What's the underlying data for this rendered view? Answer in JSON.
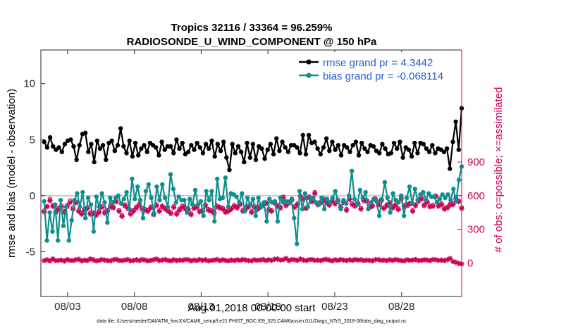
{
  "chart_data": {
    "type": "line",
    "title": [
      "Tropics 32116 / 33364 = 96.259%",
      "RADIOSONDE_U_WIND_COMPONENT @ 150 hPa"
    ],
    "xlabel": "Aug.01,2018 00:00:00 start",
    "ylabel_left": "rmse and bias (model - observation)",
    "ylabel_right": "# of obs: o=possible; ×=assimilated",
    "footer": "data file: /Users/raeder/DAI/ATM_forcXX/CAM6_setup/f.e21.FHIST_BGC.f09_025.CAM6assim.011/Diags_NTrS_2018-08/obs_diag_output.nc",
    "x_range_days": [
      0,
      31.5
    ],
    "x_tick_days": [
      2,
      7,
      12,
      17,
      22,
      27
    ],
    "x_tick_labels": [
      "08/03",
      "08/08",
      "08/13",
      "08/18",
      "08/23",
      "08/28"
    ],
    "ylim_left": [
      -9,
      13
    ],
    "yticks_left": [
      -5,
      0,
      5,
      10
    ],
    "ylim_right": [
      -300,
      1900
    ],
    "yticks_right": [
      0,
      300,
      600,
      900
    ],
    "colors": {
      "rmse": "#000000",
      "bias": "#0e8e8e",
      "obs": "#cc0055",
      "zero_line": "#c8c8c8",
      "legend_text": "#1f5fd6"
    },
    "legend": [
      {
        "label": "rmse grand pr = 4.3442",
        "series": "rmse"
      },
      {
        "label": "bias grand pr = -0.068114",
        "series": "bias"
      }
    ],
    "series": [
      {
        "name": "rmse",
        "axis": "left",
        "values": [
          4.8,
          4.3,
          5.2,
          4.4,
          4.1,
          4.3,
          3.9,
          4.6,
          4.9,
          5.0,
          4.4,
          3.2,
          4.5,
          5.5,
          5.6,
          3.9,
          4.6,
          3.0,
          4.9,
          4.2,
          4.5,
          3.2,
          4.7,
          4.9,
          4.0,
          4.5,
          6.0,
          4.4,
          3.8,
          4.9,
          3.5,
          4.7,
          3.6,
          4.2,
          4.5,
          3.9,
          4.7,
          4.5,
          4.3,
          3.6,
          4.8,
          4.1,
          4.4,
          4.4,
          3.8,
          5.0,
          4.2,
          4.7,
          3.7,
          3.9,
          4.5,
          4.1,
          4.7,
          4.3,
          3.8,
          4.6,
          4.2,
          4.9,
          3.5,
          4.6,
          4.0,
          4.8,
          3.4,
          2.3,
          4.6,
          3.8,
          4.4,
          3.9,
          3.0,
          4.7,
          3.4,
          4.6,
          3.2,
          4.4,
          4.2,
          3.3,
          4.1,
          4.6,
          3.7,
          5.1,
          4.0,
          4.8,
          4.3,
          3.9,
          4.5,
          4.5,
          4.3,
          3.8,
          5.4,
          3.7,
          5.4,
          4.7,
          4.8,
          4.2,
          3.7,
          4.3,
          5.1,
          4.0,
          4.8,
          4.1,
          4.5,
          3.6,
          4.5,
          4.3,
          3.9,
          4.5,
          4.8,
          3.6,
          4.7,
          4.2,
          3.9,
          4.5,
          4.4,
          4.0,
          3.8,
          4.6,
          4.2,
          3.7,
          3.8,
          4.7,
          4.2,
          4.8,
          3.4,
          4.3,
          4.1,
          3.5,
          4.7,
          3.8,
          4.7,
          4.6,
          4.2,
          3.9,
          4.5,
          3.8,
          4.2,
          4.1,
          3.9,
          4.2,
          2.4,
          4.8,
          6.6,
          4.1,
          7.8
        ]
      },
      {
        "name": "bias",
        "axis": "left",
        "values": [
          -0.5,
          -4.0,
          -1.5,
          -3.2,
          -0.8,
          -4.0,
          -0.4,
          -2.7,
          -1.0,
          -4.0,
          -2.2,
          -0.4,
          0.2,
          -1.0,
          0.3,
          -2.0,
          -0.2,
          -0.8,
          -3.2,
          -0.1,
          -1.0,
          0.2,
          -0.6,
          -2.4,
          -0.2,
          -0.6,
          -0.2,
          0.0,
          -0.7,
          -0.3,
          0.3,
          -1.2,
          1.5,
          -0.3,
          0.8,
          -0.4,
          -2.0,
          0.4,
          1.0,
          -0.2,
          -1.6,
          0.8,
          -0.4,
          1.0,
          -0.2,
          -1.0,
          1.9,
          0.6,
          -0.6,
          -0.1,
          -0.4,
          -0.4,
          -1.5,
          -0.3,
          -0.8,
          0.5,
          -0.8,
          -0.5,
          -1.8,
          0.4,
          -0.4,
          0.4,
          -2.3,
          1.5,
          -0.3,
          -0.2,
          1.6,
          -1.0,
          0.2,
          0.1,
          -0.1,
          -0.6,
          0.2,
          -1.4,
          -0.2,
          -0.8,
          -0.3,
          -1.8,
          -0.2,
          -1.0,
          -0.6,
          -2.3,
          -0.3,
          -0.6,
          -0.5,
          -2.3,
          -0.2,
          -0.6,
          -0.5,
          -0.6,
          -0.4,
          -2.0,
          -4.3,
          0.4,
          -1.2,
          0.2,
          -1.0,
          -0.3,
          -0.2,
          -0.6,
          -0.8,
          -0.2,
          -1.2,
          -0.3,
          -0.6,
          -0.2,
          0.4,
          -0.5,
          -1.2,
          -0.4,
          -0.7,
          0.0,
          2.2,
          -0.3,
          -0.8,
          0.5,
          -0.2,
          0.3,
          -1.2,
          -0.6,
          -0.3,
          -0.5,
          -1.8,
          -0.4,
          1.2,
          -0.2,
          -1.5,
          0.2,
          -0.4,
          -0.6,
          0.0,
          -1.8,
          -0.2,
          0.8,
          -0.7,
          0.6,
          -0.4,
          0.1,
          0.3,
          -0.4,
          0.2,
          -0.1,
          -0.1,
          -0.6,
          -0.3,
          0.1,
          -0.2,
          0.1,
          -0.4,
          0.6,
          -0.5,
          1.4,
          2.6
        ]
      },
      {
        "name": "obs_possible",
        "axis": "right",
        "marker": "o",
        "values": [
          465,
          505,
          570,
          515,
          460,
          490,
          510,
          460,
          515,
          555,
          490,
          545,
          470,
          445,
          480,
          495,
          445,
          450,
          435,
          460,
          505,
          455,
          470,
          510,
          500,
          555,
          470,
          425,
          520,
          495,
          445,
          470,
          500,
          525,
          490,
          480,
          470,
          500,
          440,
          520,
          470,
          510,
          490,
          470,
          450,
          505,
          445,
          480,
          510,
          490,
          485,
          440,
          495,
          505,
          465,
          470,
          520,
          480,
          470,
          455,
          510,
          500,
          490,
          460,
          470,
          490,
          515,
          500,
          530,
          470,
          490,
          510,
          460,
          505,
          485,
          505,
          520,
          540,
          480,
          470,
          545,
          515,
          500,
          590,
          520,
          545,
          570,
          505,
          530,
          600,
          575,
          495,
          590,
          555,
          630,
          530,
          545,
          575,
          550,
          525,
          560,
          535,
          565,
          505,
          550,
          480,
          575,
          530,
          515,
          535,
          490,
          565,
          560,
          505,
          515,
          575,
          525,
          565,
          495,
          520,
          540,
          500,
          520,
          485,
          580,
          515,
          520,
          535,
          470,
          520,
          560,
          580,
          520,
          550,
          510,
          515,
          600,
          515,
          530,
          490,
          500,
          525,
          530,
          580,
          555,
          495
        ]
      },
      {
        "name": "obs_assimilated",
        "axis": "right",
        "marker": "x",
        "values": [
          455,
          500,
          555,
          505,
          450,
          480,
          500,
          450,
          505,
          540,
          480,
          535,
          460,
          435,
          470,
          485,
          435,
          440,
          425,
          450,
          495,
          445,
          460,
          500,
          490,
          545,
          460,
          415,
          510,
          485,
          435,
          460,
          490,
          515,
          480,
          470,
          460,
          490,
          430,
          510,
          460,
          500,
          480,
          460,
          440,
          495,
          435,
          470,
          500,
          480,
          475,
          430,
          485,
          495,
          455,
          460,
          510,
          470,
          460,
          445,
          500,
          490,
          480,
          450,
          460,
          480,
          505,
          490,
          520,
          460,
          480,
          500,
          450,
          495,
          475,
          495,
          510,
          530,
          470,
          460,
          535,
          505,
          490,
          580,
          510,
          535,
          560,
          495,
          520,
          590,
          565,
          485,
          580,
          545,
          620,
          520,
          535,
          565,
          540,
          515,
          550,
          525,
          555,
          495,
          540,
          470,
          565,
          520,
          505,
          525,
          480,
          555,
          550,
          495,
          505,
          565,
          515,
          555,
          485,
          510,
          530,
          490,
          510,
          475,
          570,
          505,
          510,
          525,
          460,
          510,
          550,
          570,
          510,
          540,
          500,
          505,
          590,
          505,
          520,
          480,
          490,
          515,
          520,
          570,
          545,
          485
        ]
      },
      {
        "name": "obs_rejected",
        "axis": "right",
        "marker": "*",
        "values": [
          20,
          28,
          18,
          35,
          20,
          22,
          25,
          16,
          30,
          22,
          20,
          28,
          32,
          18,
          25,
          20,
          35,
          28,
          18,
          22,
          30,
          25,
          20,
          18,
          28,
          32,
          22,
          20,
          25,
          30,
          18,
          22,
          28,
          20,
          30,
          25,
          18,
          22,
          28,
          35,
          20,
          25,
          30,
          22,
          18,
          28,
          20,
          25,
          22,
          30,
          28,
          18,
          25,
          20,
          30,
          22,
          28,
          18,
          22,
          25,
          30,
          20,
          28,
          22,
          18,
          25,
          20,
          28,
          22,
          30,
          25,
          20,
          18,
          28,
          22,
          25,
          30,
          20,
          28,
          22,
          32,
          35,
          25,
          28,
          40,
          20,
          30,
          28,
          22,
          35,
          25,
          20,
          28,
          30,
          22,
          25,
          20,
          28,
          32,
          25,
          18,
          28,
          22,
          30,
          25,
          20,
          28,
          22,
          30,
          25,
          28,
          20,
          25,
          22,
          18,
          28,
          30,
          22,
          25,
          20,
          28,
          22,
          30,
          25,
          20,
          18,
          28,
          22,
          25,
          30,
          20,
          22,
          28,
          25,
          20,
          30,
          28,
          22,
          25,
          20,
          28,
          40,
          12,
          5,
          -5,
          -10
        ]
      }
    ]
  }
}
